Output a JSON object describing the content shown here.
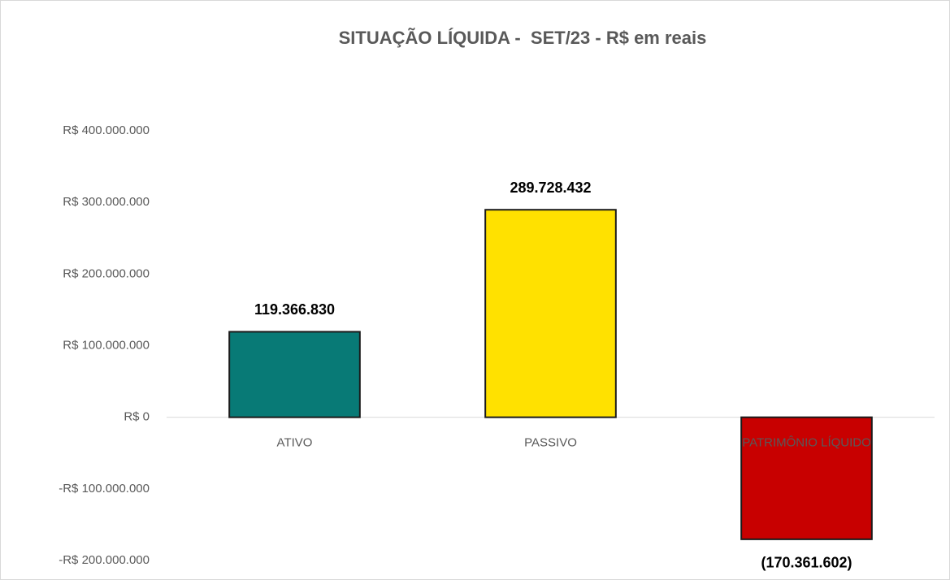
{
  "chart_data": {
    "type": "bar",
    "title": "SITUAÇÃO LÍQUIDA -  SET/23 - R$ em reais",
    "categories": [
      "ATIVO",
      "PASSIVO",
      "PATRIMÔNIO LÍQUIDO"
    ],
    "values": [
      119366830,
      289728432,
      -170361602
    ],
    "value_labels": [
      "119.366.830",
      "289.728.432",
      "(170.361.602)"
    ],
    "colors": [
      "#087a76",
      "#ffe100",
      "#c80000"
    ],
    "ylim": [
      -200000000,
      400000000
    ],
    "yticks": [
      {
        "value": -200000000,
        "label": "-R$ 200.000.000"
      },
      {
        "value": -100000000,
        "label": "-R$ 100.000.000"
      },
      {
        "value": 0,
        "label": "R$ 0"
      },
      {
        "value": 100000000,
        "label": "R$ 100.000.000"
      },
      {
        "value": 200000000,
        "label": "R$ 200.000.000"
      },
      {
        "value": 300000000,
        "label": "R$ 300.000.000"
      },
      {
        "value": 400000000,
        "label": "R$ 400.000.000"
      }
    ],
    "grid": false
  }
}
